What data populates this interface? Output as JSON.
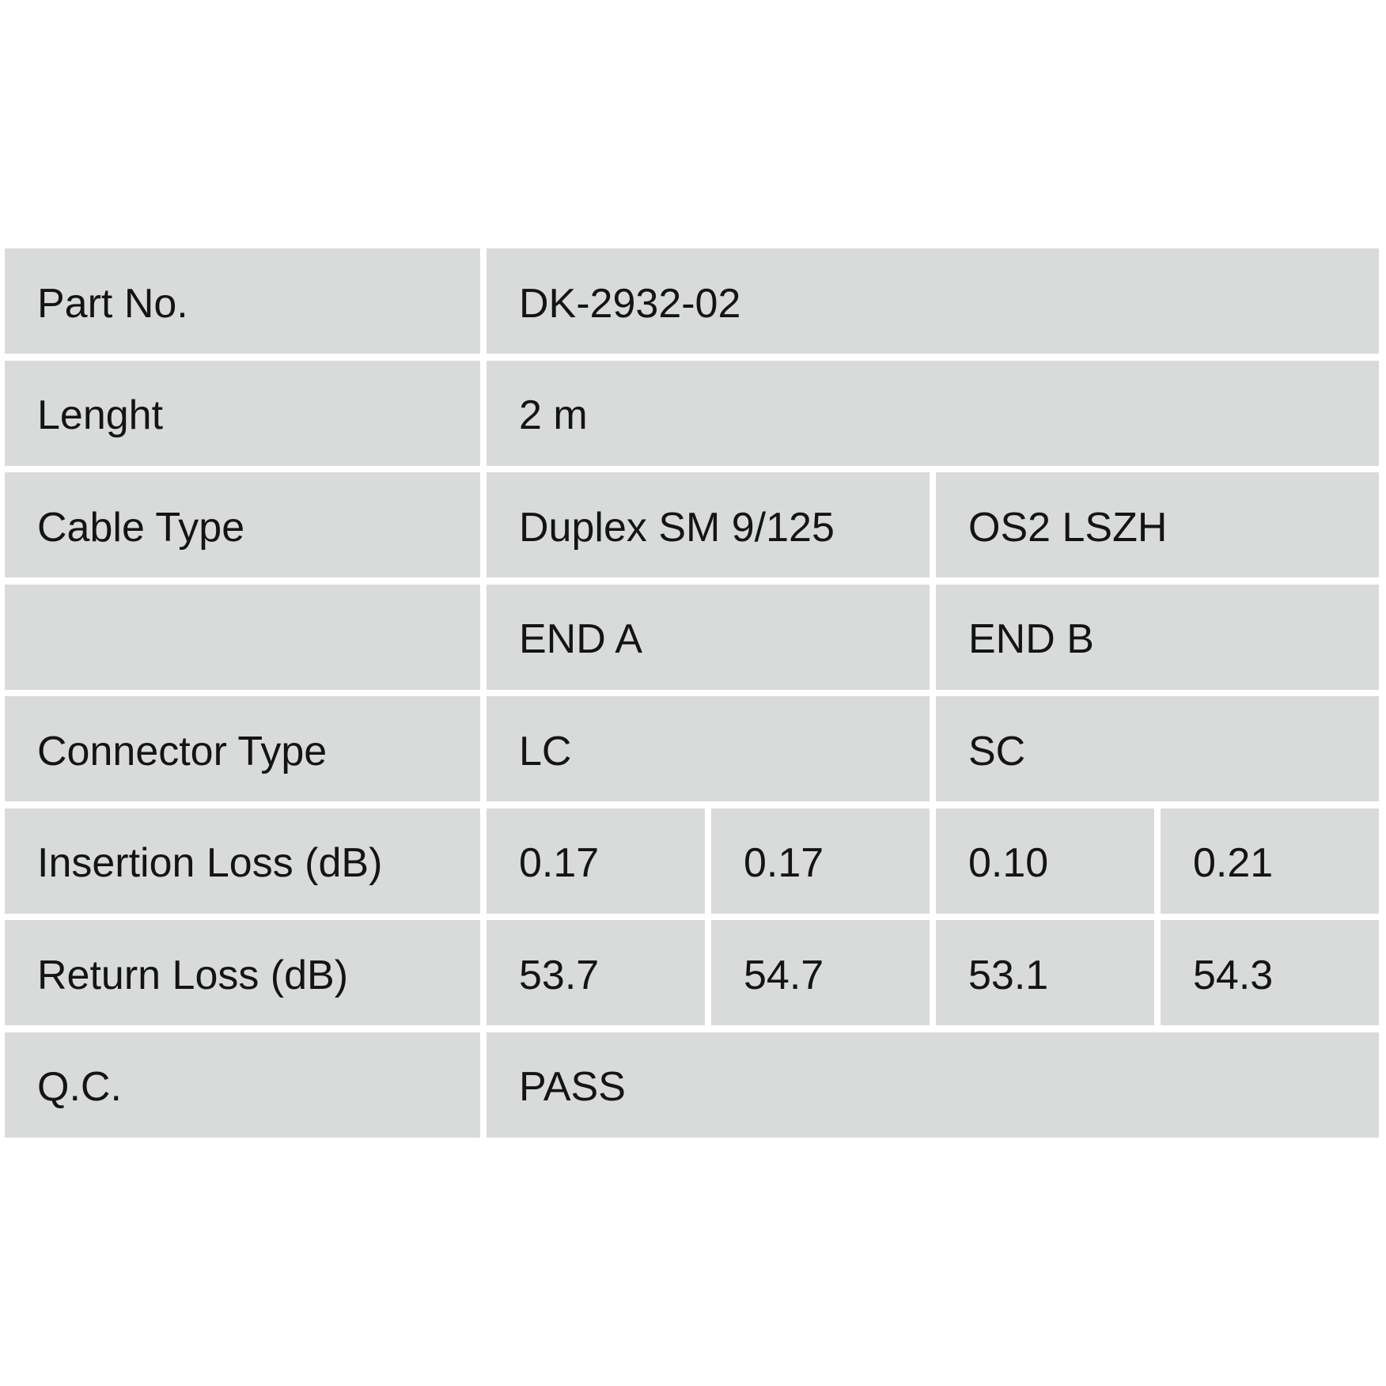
{
  "rows": [
    {
      "label": "Part No.",
      "value": "DK-2932-02"
    },
    {
      "label": "Lenght",
      "value": "2 m"
    },
    {
      "label": "Cable Type",
      "values": [
        "Duplex SM 9/125",
        "OS2 LSZH"
      ]
    },
    {
      "label": "",
      "values": [
        "END A",
        "END B"
      ]
    },
    {
      "label": "Connector Type",
      "values": [
        "LC",
        "SC"
      ]
    },
    {
      "label": "Insertion Loss (dB)",
      "values": [
        "0.17",
        "0.17",
        "0.10",
        "0.21"
      ]
    },
    {
      "label": "Return Loss (dB)",
      "values": [
        "53.7",
        "54.7",
        "53.1",
        "54.3"
      ]
    },
    {
      "label": "Q.C.",
      "value": "PASS"
    }
  ],
  "colors": {
    "cell_bg": "#d9dbda",
    "text": "#141414"
  }
}
